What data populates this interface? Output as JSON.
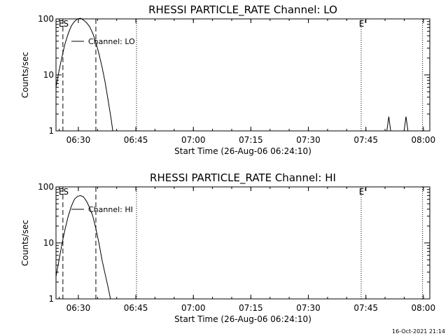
{
  "chart_data": [
    {
      "type": "line",
      "title": "RHESSI PARTICLE_RATE Channel: LO",
      "xlabel": "Start Time (26-Aug-06 06:24:10)",
      "ylabel": "Counts/sec",
      "yscale": "log",
      "ylim": [
        1,
        100
      ],
      "xlim": [
        0,
        97.5
      ],
      "x_ticks": [
        {
          "x": 5.83,
          "label": "06:30"
        },
        {
          "x": 20.83,
          "label": "06:45"
        },
        {
          "x": 35.83,
          "label": "07:00"
        },
        {
          "x": 50.83,
          "label": "07:15"
        },
        {
          "x": 65.83,
          "label": "07:30"
        },
        {
          "x": 80.83,
          "label": "07:45"
        },
        {
          "x": 95.83,
          "label": "08:00"
        }
      ],
      "y_ticks": [
        {
          "y": 1,
          "label": "1"
        },
        {
          "y": 10,
          "label": "10"
        },
        {
          "y": 100,
          "label": "100"
        }
      ],
      "legend": {
        "text": "Channel: LO",
        "position": "top-left"
      },
      "series": [
        {
          "name": "Channel: LO",
          "points": [
            [
              0.0,
              6.0
            ],
            [
              0.8,
              12.0
            ],
            [
              1.5,
              20.0
            ],
            [
              2.3,
              35.0
            ],
            [
              3.2,
              55.0
            ],
            [
              4.0,
              75.0
            ],
            [
              4.8,
              90.0
            ],
            [
              5.6,
              100.0
            ],
            [
              6.4,
              103.0
            ],
            [
              7.2,
              95.0
            ],
            [
              8.0,
              85.0
            ],
            [
              8.8,
              72.0
            ],
            [
              9.6,
              55.0
            ],
            [
              10.4,
              38.0
            ],
            [
              11.2,
              24.0
            ],
            [
              12.0,
              14.0
            ],
            [
              12.8,
              7.5
            ],
            [
              13.6,
              3.5
            ],
            [
              14.4,
              1.6
            ],
            [
              14.8,
              1.0
            ]
          ]
        },
        {
          "name": "",
          "points": [
            [
              86.3,
              1.0
            ],
            [
              86.8,
              1.8
            ],
            [
              87.3,
              1.0
            ]
          ]
        },
        {
          "name": "",
          "points": [
            [
              90.8,
              1.0
            ],
            [
              91.3,
              1.8
            ],
            [
              91.8,
              1.0
            ]
          ]
        }
      ],
      "dashed_lines": [
        1.8,
        10.4
      ],
      "dotted_lines": [
        21.0,
        79.6,
        95.6
      ],
      "annotations": [
        {
          "text": "E",
          "x": 1.4,
          "position": "top"
        },
        {
          "text": "S",
          "x": 2.6,
          "position": "top"
        },
        {
          "text": "E'",
          "x": 80.0,
          "position": "top"
        }
      ]
    },
    {
      "type": "line",
      "title": "RHESSI PARTICLE_RATE Channel: HI",
      "xlabel": "Start Time (26-Aug-06 06:24:10)",
      "ylabel": "Counts/sec",
      "yscale": "log",
      "ylim": [
        1,
        100
      ],
      "xlim": [
        0,
        97.5
      ],
      "x_ticks": [
        {
          "x": 5.83,
          "label": "06:30"
        },
        {
          "x": 20.83,
          "label": "06:45"
        },
        {
          "x": 35.83,
          "label": "07:00"
        },
        {
          "x": 50.83,
          "label": "07:15"
        },
        {
          "x": 65.83,
          "label": "07:30"
        },
        {
          "x": 80.83,
          "label": "07:45"
        },
        {
          "x": 95.83,
          "label": "08:00"
        }
      ],
      "y_ticks": [
        {
          "y": 1,
          "label": "1"
        },
        {
          "y": 10,
          "label": "10"
        },
        {
          "y": 100,
          "label": "100"
        }
      ],
      "legend": {
        "text": "Channel: HI",
        "position": "top-left"
      },
      "series": [
        {
          "name": "Channel: HI",
          "points": [
            [
              0.0,
              2.5
            ],
            [
              0.8,
              5.0
            ],
            [
              1.6,
              10.0
            ],
            [
              2.4,
              18.0
            ],
            [
              3.2,
              30.0
            ],
            [
              4.0,
              45.0
            ],
            [
              4.8,
              60.0
            ],
            [
              5.6,
              68.0
            ],
            [
              6.4,
              70.0
            ],
            [
              7.2,
              66.0
            ],
            [
              8.0,
              55.0
            ],
            [
              8.8,
              42.0
            ],
            [
              9.6,
              30.0
            ],
            [
              10.4,
              18.0
            ],
            [
              11.2,
              10.0
            ],
            [
              12.0,
              5.0
            ],
            [
              12.8,
              2.8
            ],
            [
              13.6,
              1.6
            ],
            [
              14.2,
              1.0
            ]
          ]
        }
      ],
      "dashed_lines": [
        1.8,
        10.4
      ],
      "dotted_lines": [
        21.0,
        79.6,
        95.6
      ],
      "annotations": [
        {
          "text": "E",
          "x": 1.4,
          "position": "top"
        },
        {
          "text": "S",
          "x": 2.6,
          "position": "top"
        },
        {
          "text": "E'",
          "x": 80.0,
          "position": "top"
        }
      ]
    }
  ],
  "footer": {
    "timestamp": "16-Oct-2021 21:14"
  }
}
